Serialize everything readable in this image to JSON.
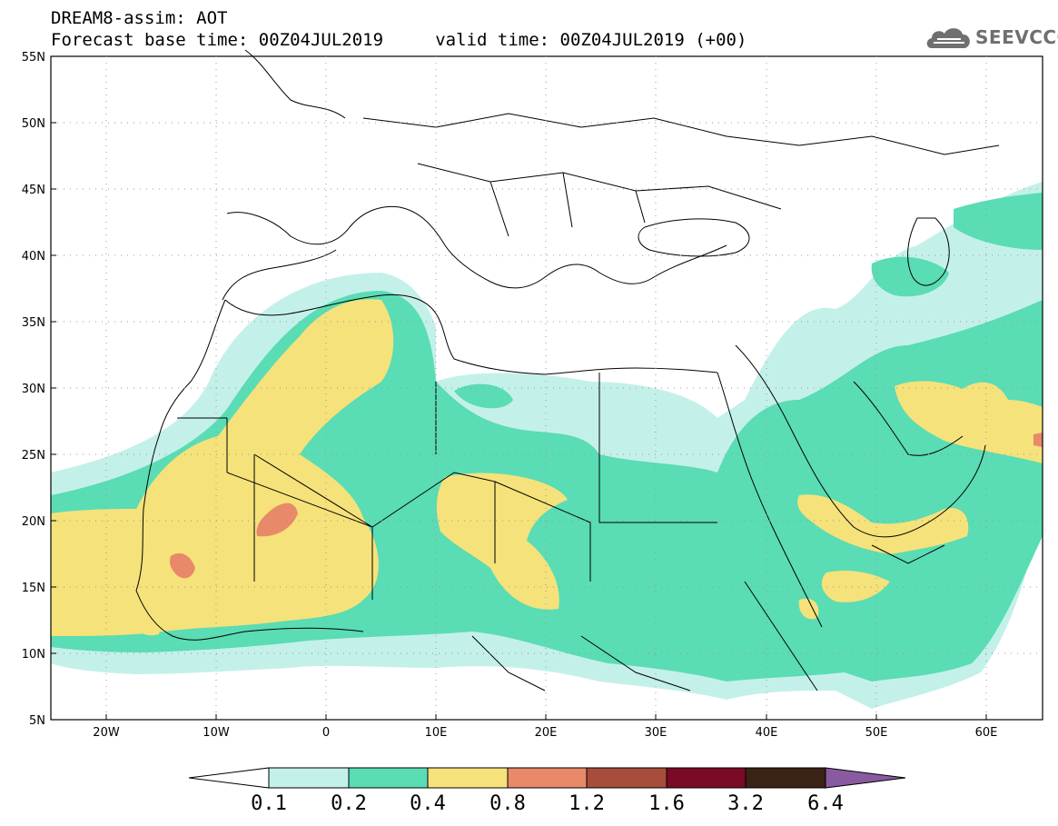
{
  "header": {
    "title_line1": "DREAM8-assim: AOT",
    "title_line2": "Forecast base time: 00Z04JUL2019     valid time: 00Z04JUL2019 (+00)"
  },
  "logo": {
    "text": "SEEVCCC",
    "icon": "cloud-logo-icon"
  },
  "map": {
    "lon_ticks": [
      "20W",
      "10W",
      "0",
      "10E",
      "20E",
      "30E",
      "40E",
      "50E",
      "60E"
    ],
    "lat_ticks": [
      "55N",
      "50N",
      "45N",
      "40N",
      "35N",
      "30N",
      "25N",
      "20N",
      "15N",
      "10N",
      "5N"
    ],
    "lon_range": [
      -25,
      65
    ],
    "lat_range": [
      5,
      55
    ]
  },
  "colorbar": {
    "labels": [
      "0.1",
      "0.2",
      "0.4",
      "0.8",
      "1.2",
      "1.6",
      "3.2",
      "6.4"
    ],
    "colors": [
      "#ffffff",
      "#c4f0ea",
      "#5adcb4",
      "#f5e27a",
      "#e8896a",
      "#a84c3c",
      "#7a0a26",
      "#3a2214",
      "#8a5aa0"
    ]
  }
}
